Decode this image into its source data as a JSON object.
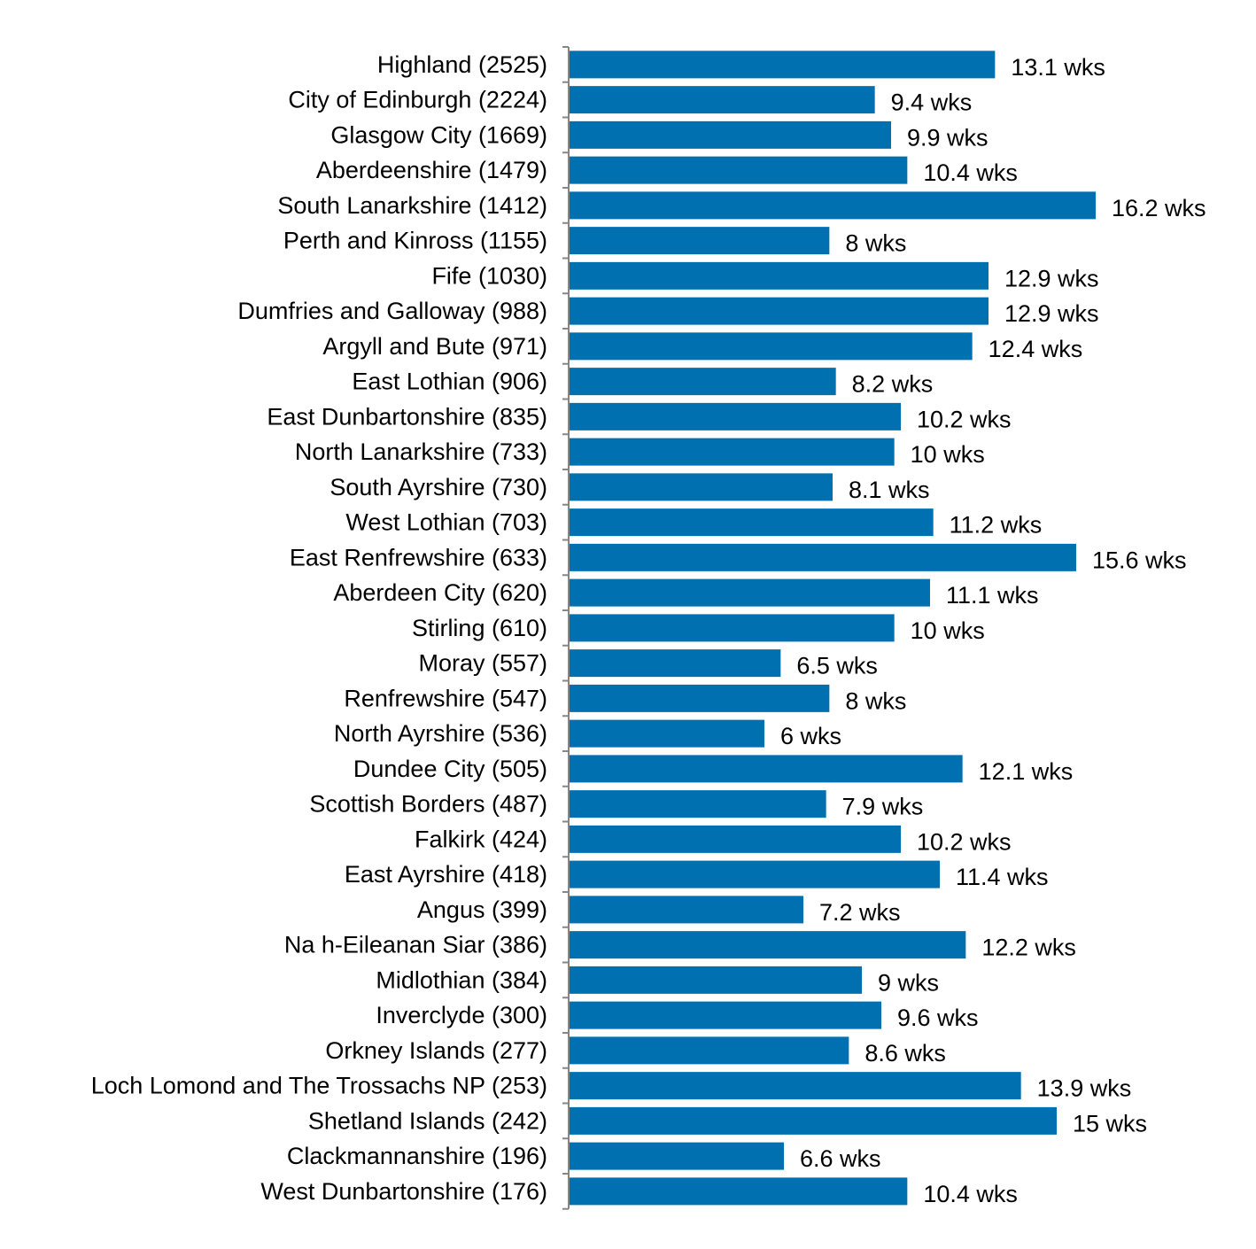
{
  "chart_data": {
    "type": "bar",
    "orientation": "horizontal",
    "title": "",
    "xlabel": "",
    "ylabel": "",
    "categories": [
      "Highland (2525)",
      "City of Edinburgh (2224)",
      "Glasgow City (1669)",
      "Aberdeenshire (1479)",
      "South Lanarkshire (1412)",
      "Perth and Kinross (1155)",
      "Fife (1030)",
      "Dumfries and Galloway (988)",
      "Argyll and Bute (971)",
      "East Lothian (906)",
      "East Dunbartonshire (835)",
      "North Lanarkshire (733)",
      "South Ayrshire (730)",
      "West Lothian (703)",
      "East Renfrewshire (633)",
      "Aberdeen City (620)",
      "Stirling (610)",
      "Moray (557)",
      "Renfrewshire (547)",
      "North Ayrshire (536)",
      "Dundee City (505)",
      "Scottish Borders (487)",
      "Falkirk (424)",
      "East Ayrshire (418)",
      "Angus (399)",
      "Na h-Eileanan Siar (386)",
      "Midlothian (384)",
      "Inverclyde (300)",
      "Orkney Islands (277)",
      "Loch Lomond and The Trossachs NP (253)",
      "Shetland Islands (242)",
      "Clackmannanshire (196)",
      "West Dunbartonshire (176)"
    ],
    "values": [
      13.1,
      9.4,
      9.9,
      10.4,
      16.2,
      8,
      12.9,
      12.9,
      12.4,
      8.2,
      10.2,
      10,
      8.1,
      11.2,
      15.6,
      11.1,
      10,
      6.5,
      8,
      6,
      12.1,
      7.9,
      10.2,
      11.4,
      7.2,
      12.2,
      9,
      9.6,
      8.6,
      13.9,
      15,
      6.6,
      10.4
    ],
    "value_labels": [
      "13.1 wks",
      "9.4 wks",
      "9.9 wks",
      "10.4 wks",
      "16.2 wks",
      "8 wks",
      "12.9 wks",
      "12.9 wks",
      "12.4 wks",
      "8.2 wks",
      "10.2 wks",
      "10 wks",
      "8.1 wks",
      "11.2 wks",
      "15.6 wks",
      "11.1 wks",
      "10 wks",
      "6.5 wks",
      "8 wks",
      "6 wks",
      "12.1 wks",
      "7.9 wks",
      "10.2 wks",
      "11.4 wks",
      "7.2 wks",
      "12.2 wks",
      "9 wks",
      "9.6 wks",
      "8.6 wks",
      "13.9 wks",
      "15 wks",
      "6.6 wks",
      "10.4 wks"
    ],
    "xlim": [
      0,
      16.2
    ],
    "grid": false,
    "legend": "none",
    "bar_color": "#0070b0",
    "axis_color": "#868686"
  }
}
